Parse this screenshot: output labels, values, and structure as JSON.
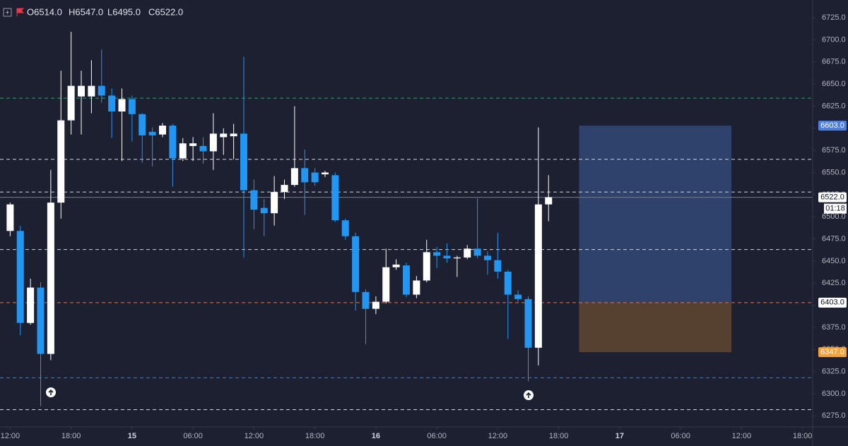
{
  "chart_data": {
    "type": "candlestick",
    "ohlc_labels": [
      "O6514.0",
      "H6547.0",
      "L6495.0",
      "C6522.0"
    ],
    "x": [
      0,
      1,
      2,
      3,
      4,
      5,
      6,
      7,
      8,
      9,
      10,
      11,
      12,
      13,
      14,
      15,
      16,
      17,
      18,
      19,
      20,
      21,
      22,
      23,
      24,
      25,
      26,
      27,
      28,
      29,
      30,
      31,
      32,
      33,
      34,
      35,
      36,
      37,
      38,
      39,
      40,
      41,
      42,
      43,
      44,
      45,
      46,
      47,
      48,
      49,
      50,
      51,
      52,
      53
    ],
    "open": [
      6484,
      6484,
      6380,
      6420,
      6345,
      6516,
      6609,
      6636,
      6636,
      6648,
      6637,
      6619,
      6633,
      6616,
      6596,
      6593,
      6603,
      6566,
      6580,
      6580,
      6574,
      6590,
      6591,
      6594,
      6530,
      6510,
      6504,
      6528,
      6536,
      6555,
      6550,
      6548,
      6547,
      6496,
      6478,
      6415,
      6396,
      6404,
      6443,
      6445,
      6412,
      6428,
      6460,
      6456,
      6453,
      6454,
      6464,
      6456,
      6451,
      6438,
      6412,
      6407,
      6352,
      6514
    ],
    "high": [
      6516,
      6490,
      6430,
      6426,
      6553,
      6665,
      6709,
      6665,
      6677,
      6689,
      6645,
      6645,
      6637,
      6617,
      6601,
      6606,
      6605,
      6589,
      6590,
      6590,
      6617,
      6600,
      6605,
      6681,
      6542,
      6520,
      6546,
      6542,
      6625,
      6576,
      6555,
      6552,
      6550,
      6498,
      6482,
      6418,
      6410,
      6464,
      6452,
      6448,
      6433,
      6474,
      6466,
      6470,
      6456,
      6468,
      6521,
      6461,
      6482,
      6440,
      6417,
      6410,
      6601,
      6547
    ],
    "low": [
      6478,
      6366,
      6378,
      6286,
      6338,
      6498,
      6593,
      6593,
      6617,
      6629,
      6589,
      6563,
      6585,
      6561,
      6557,
      6590,
      6534,
      6563,
      6563,
      6560,
      6553,
      6570,
      6565,
      6454,
      6486,
      6478,
      6490,
      6520,
      6534,
      6502,
      6535,
      6545,
      6494,
      6474,
      6394,
      6356,
      6390,
      6402,
      6440,
      6409,
      6408,
      6426,
      6442,
      6448,
      6432,
      6452,
      6453,
      6435,
      6430,
      6362,
      6404,
      6314,
      6332,
      6495
    ],
    "close": [
      6514,
      6380,
      6420,
      6345,
      6516,
      6609,
      6648,
      6648,
      6648,
      6637,
      6619,
      6633,
      6616,
      6592,
      6592,
      6603,
      6566,
      6583,
      6583,
      6574,
      6594,
      6594,
      6594,
      6530,
      6508,
      6504,
      6528,
      6536,
      6555,
      6539,
      6539,
      6550,
      6496,
      6478,
      6415,
      6396,
      6404,
      6443,
      6446,
      6412,
      6428,
      6460,
      6456,
      6453,
      6454,
      6464,
      6456,
      6451,
      6438,
      6412,
      6407,
      6352,
      6514,
      6522
    ],
    "up_color": "#ffffff",
    "down_color": "#2196f3",
    "xlim": [
      -1,
      79
    ],
    "xticks": [
      {
        "value": 0,
        "label": "12:00"
      },
      {
        "value": 6,
        "label": "18:00"
      },
      12,
      {
        "value": 18,
        "label": "06:00"
      },
      {
        "value": 24,
        "label": "12:00"
      },
      {
        "value": 30,
        "label": "18:00"
      },
      36,
      {
        "value": 42,
        "label": "06:00"
      },
      {
        "value": 48,
        "label": "12:00"
      },
      {
        "value": 54,
        "label": "18:00"
      },
      60,
      {
        "value": 66,
        "label": "06:00"
      },
      {
        "value": 72,
        "label": "12:00"
      },
      {
        "value": 78,
        "label": "18:00"
      }
    ],
    "xtick_day_labels": [
      {
        "value": 12,
        "label": "15"
      },
      {
        "value": 36,
        "label": "16"
      },
      {
        "value": 60,
        "label": "17"
      }
    ],
    "ylim": [
      6262.5,
      6745
    ],
    "yticks": [
      {
        "value": 6275,
        "label": "6275.0"
      },
      {
        "value": 6300,
        "label": "6300.0"
      },
      {
        "value": 6325,
        "label": "6325.0"
      },
      {
        "value": 6350,
        "label": "6350.0"
      },
      {
        "value": 6375,
        "label": "6375.0"
      },
      {
        "value": 6400,
        "label": "6400.0"
      },
      {
        "value": 6425,
        "label": "6425.0"
      },
      {
        "value": 6450,
        "label": "6450.0"
      },
      {
        "value": 6475,
        "label": "6475.0"
      },
      {
        "value": 6500,
        "label": "6500.0"
      },
      {
        "value": 6525,
        "label": "6525.0"
      },
      {
        "value": 6550,
        "label": "6550.0"
      },
      {
        "value": 6575,
        "label": "6575.0"
      },
      {
        "value": 6600,
        "label": "6600.0"
      },
      {
        "value": 6625,
        "label": "6625.0"
      },
      {
        "value": 6650,
        "label": "6650.0"
      },
      {
        "value": 6675,
        "label": "6675.0"
      },
      {
        "value": 6700,
        "label": "6700.0"
      },
      {
        "value": 6725,
        "label": "6725.0"
      }
    ],
    "levels": [
      {
        "value": 6634,
        "color": "#22ab5c",
        "dashed": true
      },
      {
        "value": 6565,
        "color": "#d1d4dc",
        "dashed": true
      },
      {
        "value": 6528,
        "color": "#d1d4dc",
        "dashed": true
      },
      {
        "value": 6522,
        "color": "#787b86",
        "dashed": false
      },
      {
        "value": 6463,
        "color": "#d1d4dc",
        "dashed": true
      },
      {
        "value": 6403,
        "color": "#f0703a",
        "dashed": true
      },
      {
        "value": 6318,
        "color": "#3d7fc4",
        "dashed": true
      },
      {
        "value": 6282,
        "color": "#d1d4dc",
        "dashed": true
      }
    ],
    "position": {
      "start": 56,
      "end": 71,
      "target": 6603,
      "entry": 6403,
      "stop": 6347,
      "profit_color": "#2f4570",
      "loss_color": "#5a4332"
    },
    "price_labels": [
      {
        "value": 6603,
        "label": "6603.0",
        "bg": "#4a7ee0",
        "fg": "#ffffff"
      },
      {
        "value": 6522,
        "label": "6522.0",
        "bg": "#ffffff",
        "fg": "#131722"
      },
      {
        "value": 6403,
        "label": "6403.0",
        "bg": "#ffffff",
        "fg": "#131722"
      },
      {
        "value": 6347,
        "label": "6347.0",
        "bg": "#f5a038",
        "fg": "#ffffff"
      }
    ],
    "countdown": "01:18"
  }
}
